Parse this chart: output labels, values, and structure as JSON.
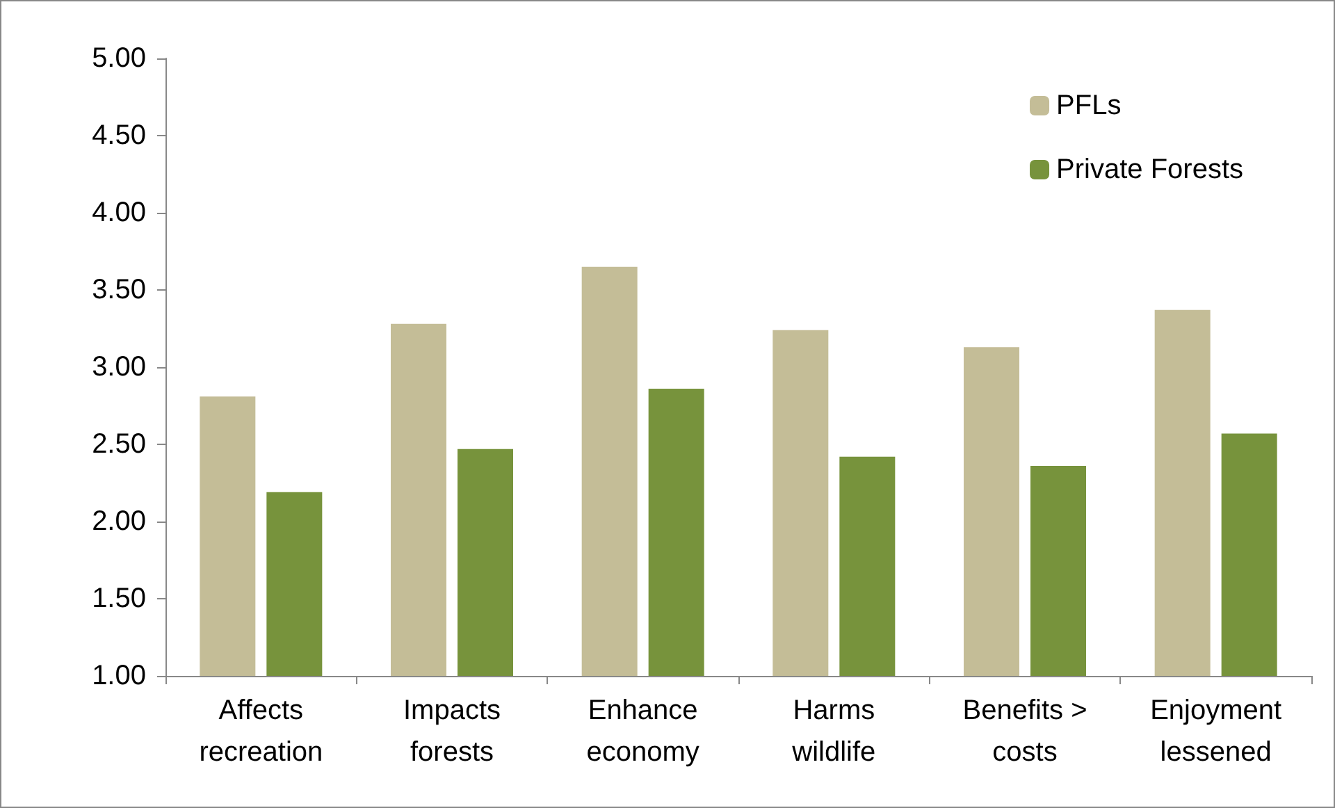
{
  "chart_data": {
    "type": "bar",
    "categories": [
      "Affects\nrecreation",
      "Impacts\nforests",
      "Enhance\neconomy",
      "Harms\nwildlife",
      "Benefits >\ncosts",
      "Enjoyment\nlessened"
    ],
    "series": [
      {
        "name": "PFLs",
        "color": "#c4bd97",
        "values": [
          2.81,
          3.28,
          3.65,
          3.24,
          3.13,
          3.37
        ]
      },
      {
        "name": "Private Forests",
        "color": "#77933c",
        "values": [
          2.19,
          2.47,
          2.86,
          2.42,
          2.36,
          2.57
        ]
      }
    ],
    "ylim": [
      1,
      5
    ],
    "yticks": [
      {
        "value": 1,
        "label": "1.00"
      },
      {
        "value": 1.5,
        "label": "1.50"
      },
      {
        "value": 2,
        "label": "2.00"
      },
      {
        "value": 2.5,
        "label": "2.50"
      },
      {
        "value": 3,
        "label": "3.00"
      },
      {
        "value": 3.5,
        "label": "3.50"
      },
      {
        "value": 4,
        "label": "4.00"
      },
      {
        "value": 4.5,
        "label": "4.50"
      },
      {
        "value": 5,
        "label": "5.00"
      }
    ],
    "grid": false,
    "legend": "top right"
  }
}
